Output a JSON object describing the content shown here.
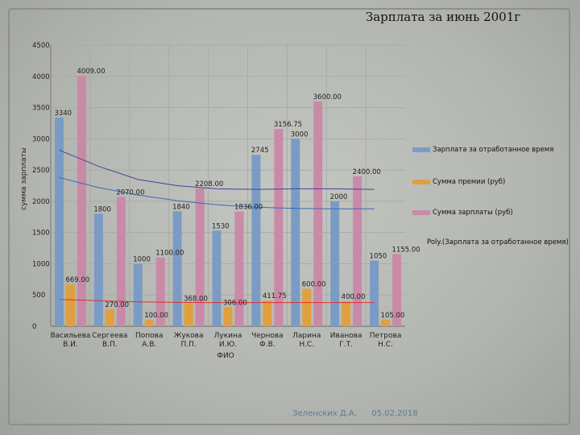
{
  "chart_data": {
    "type": "bar",
    "title": "Зарплата за июнь 2001г",
    "xlabel": "ФИО",
    "ylabel": "сумма зарплаты",
    "ylim": [
      0,
      4500
    ],
    "yticks": [
      "0",
      "500",
      "1000",
      "1500",
      "2000",
      "2500",
      "3000",
      "3500",
      "4000",
      "4500"
    ],
    "categories": [
      [
        "Васильева",
        "В.И."
      ],
      [
        "Сергеева",
        "В.П."
      ],
      [
        "Попова",
        "А.В."
      ],
      [
        "Жукова",
        "П.П."
      ],
      [
        "Лукина",
        "И.Ю."
      ],
      [
        "Чернова",
        "Ф.В."
      ],
      [
        "Ларина",
        "Н.С."
      ],
      [
        "Иванова",
        "Г.Т."
      ],
      [
        "Петрова",
        "Н.С."
      ]
    ],
    "series": [
      {
        "name": "Зарплата за отработанное время",
        "color": "#7a9cc4",
        "values": [
          3340,
          1800,
          1000,
          1840,
          1530,
          2745,
          3000,
          2000,
          1050
        ],
        "labels": [
          "3340",
          "1800",
          "1000",
          "1840",
          "1530",
          "2745",
          "3000",
          "2000",
          "1050"
        ]
      },
      {
        "name": "Сумма премии (руб)",
        "color": "#e0a040",
        "values": [
          669,
          270,
          100,
          368,
          306,
          411.75,
          600,
          400,
          105
        ],
        "labels": [
          "669.00",
          "270.00",
          "100.00",
          "368.00",
          "306.00",
          "411.75",
          "600.00",
          "400.00",
          "105.00"
        ]
      },
      {
        "name": "Сумма зарплаты (руб)",
        "color": "#c98aa8",
        "values": [
          4009,
          2070,
          1100,
          2208,
          1836,
          3156.75,
          3600,
          2400,
          1155
        ],
        "labels": [
          "4009.00",
          "2070.00",
          "1100.00",
          "2208.00",
          "1836.00",
          "3156.75",
          "3600.00",
          "2400.00",
          "1155.00"
        ]
      }
    ],
    "trendlines": [
      {
        "name": "Poly.(Зарплата за отработанное время)",
        "color": "#4b3f9a",
        "values": [
          2820,
          2560,
          2350,
          2250,
          2200,
          2190,
          2200,
          2200,
          2190
        ]
      },
      {
        "name": "",
        "color": "#3a6ab0",
        "values": [
          2380,
          2220,
          2100,
          2010,
          1945,
          1905,
          1885,
          1880,
          1880
        ]
      },
      {
        "name": "",
        "color": "#e03030",
        "values": [
          430,
          410,
          390,
          382,
          378,
          378,
          378,
          378,
          378
        ]
      }
    ],
    "legend": [
      "Зарплата за отработанное время",
      "Сумма премии (руб)",
      "Сумма зарплаты (руб)",
      "Poly.(Зарплата за отработанное время)"
    ],
    "legend_position": "right",
    "grid": true
  },
  "footer": {
    "author": "Зеленских Д.А.",
    "date": "05.02.2018"
  }
}
